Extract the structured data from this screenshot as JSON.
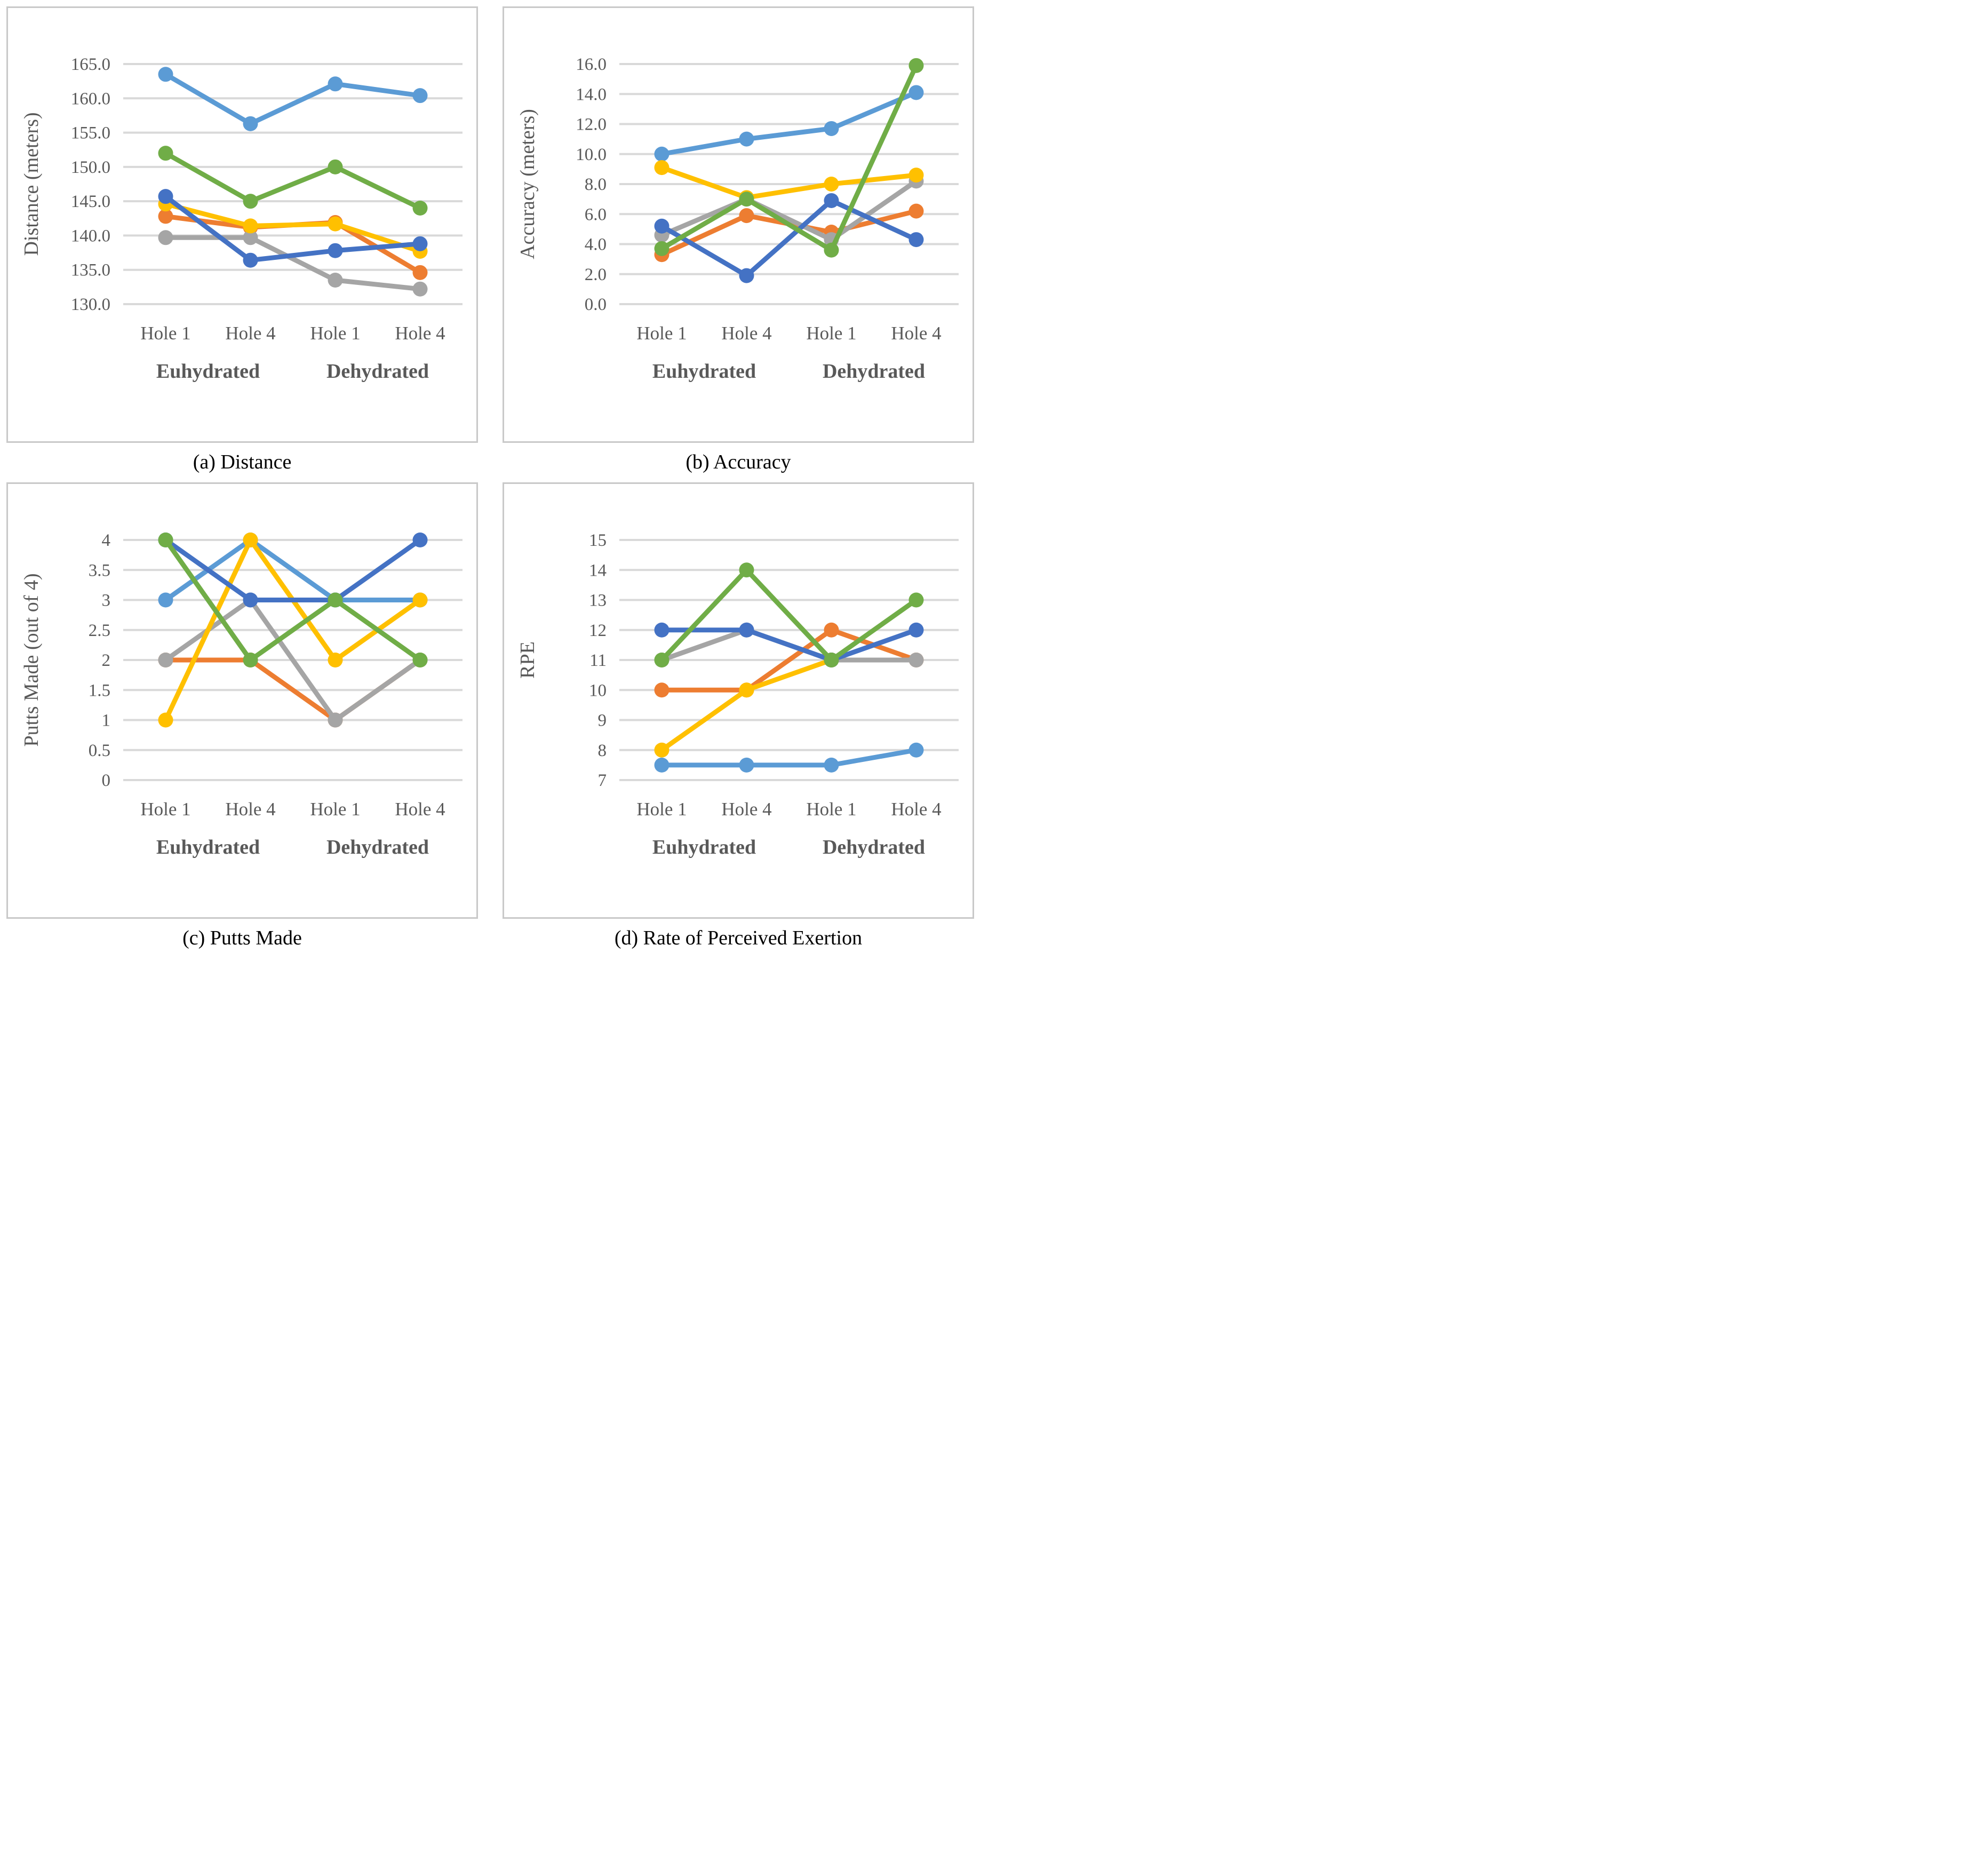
{
  "figure": {
    "text_color": "#595959",
    "grid_color": "#d9d9d9",
    "border_color": "#c9c9c9",
    "series_colors": {
      "orange": "#ED7D31",
      "gray": "#A5A5A5",
      "light_blue": "#5B9BD5",
      "yellow": "#FFC000",
      "dark_blue": "#4472C4",
      "green": "#70AD47"
    }
  },
  "chart_data": [
    {
      "id": "a",
      "type": "line",
      "caption": "(a) Distance",
      "ylabel": "Distance (meters)",
      "categories": [
        "Hole 1",
        "Hole 4",
        "Hole 1",
        "Hole 4"
      ],
      "group_labels": [
        "Euhydrated",
        "Dehydrated"
      ],
      "ylim": [
        130,
        165
      ],
      "grid": true,
      "legend_position": "none",
      "ytick_values": [
        165,
        160,
        155,
        150,
        145,
        140,
        135,
        130
      ],
      "ytick_labels": [
        "165.0",
        "160.0",
        "155.0",
        "150.0",
        "145.0",
        "140.0",
        "135.0",
        "130.0"
      ],
      "series": [
        {
          "name": "orange",
          "color": "#ED7D31",
          "values": [
            142.8,
            141.2,
            141.9,
            134.6
          ]
        },
        {
          "name": "gray",
          "color": "#A5A5A5",
          "values": [
            139.7,
            139.7,
            133.5,
            132.2
          ]
        },
        {
          "name": "light_blue",
          "color": "#5B9BD5",
          "values": [
            163.5,
            156.3,
            162.1,
            160.4
          ]
        },
        {
          "name": "yellow",
          "color": "#FFC000",
          "values": [
            144.6,
            141.4,
            141.7,
            137.7
          ]
        },
        {
          "name": "dark_blue",
          "color": "#4472C4",
          "values": [
            145.7,
            136.4,
            137.8,
            138.8
          ]
        },
        {
          "name": "green",
          "color": "#70AD47",
          "values": [
            152.0,
            145.0,
            150.0,
            144.0
          ]
        }
      ]
    },
    {
      "id": "b",
      "type": "line",
      "caption": "(b) Accuracy",
      "ylabel": "Accuracy (meters)",
      "categories": [
        "Hole 1",
        "Hole 4",
        "Hole 1",
        "Hole 4"
      ],
      "group_labels": [
        "Euhydrated",
        "Dehydrated"
      ],
      "ylim": [
        0,
        16
      ],
      "grid": true,
      "legend_position": "none",
      "ytick_values": [
        16,
        14,
        12,
        10,
        8,
        6,
        4,
        2,
        0
      ],
      "ytick_labels": [
        "16.0",
        "14.0",
        "12.0",
        "10.0",
        "8.0",
        "6.0",
        "4.0",
        "2.0",
        "0.0"
      ],
      "series": [
        {
          "name": "orange",
          "color": "#ED7D31",
          "values": [
            3.3,
            5.9,
            4.8,
            6.2
          ]
        },
        {
          "name": "gray",
          "color": "#A5A5A5",
          "values": [
            4.6,
            7.0,
            4.3,
            8.2
          ]
        },
        {
          "name": "light_blue",
          "color": "#5B9BD5",
          "values": [
            10.0,
            11.0,
            11.7,
            14.1
          ]
        },
        {
          "name": "yellow",
          "color": "#FFC000",
          "values": [
            9.1,
            7.1,
            8.0,
            8.6
          ]
        },
        {
          "name": "dark_blue",
          "color": "#4472C4",
          "values": [
            5.2,
            1.9,
            6.9,
            4.3
          ]
        },
        {
          "name": "green",
          "color": "#70AD47",
          "values": [
            3.7,
            7.0,
            3.6,
            15.9
          ]
        }
      ]
    },
    {
      "id": "c",
      "type": "line",
      "caption": "(c) Putts Made",
      "ylabel": "Putts Made (out of 4)",
      "categories": [
        "Hole 1",
        "Hole 4",
        "Hole 1",
        "Hole 4"
      ],
      "group_labels": [
        "Euhydrated",
        "Dehydrated"
      ],
      "ylim": [
        0,
        4
      ],
      "grid": true,
      "legend_position": "none",
      "ytick_values": [
        4,
        3.5,
        3,
        2.5,
        2,
        1.5,
        1,
        0.5,
        0
      ],
      "ytick_labels": [
        "4",
        "3.5",
        "3",
        "2.5",
        "2",
        "1.5",
        "1",
        "0.5",
        "0"
      ],
      "series": [
        {
          "name": "orange",
          "color": "#ED7D31",
          "values": [
            2,
            2,
            1,
            2
          ]
        },
        {
          "name": "gray",
          "color": "#A5A5A5",
          "values": [
            2,
            3,
            1,
            2
          ]
        },
        {
          "name": "light_blue",
          "color": "#5B9BD5",
          "values": [
            3,
            4,
            3,
            3
          ]
        },
        {
          "name": "yellow",
          "color": "#FFC000",
          "values": [
            1,
            4,
            2,
            3
          ]
        },
        {
          "name": "dark_blue",
          "color": "#4472C4",
          "values": [
            4,
            3,
            3,
            4
          ]
        },
        {
          "name": "green",
          "color": "#70AD47",
          "values": [
            4,
            2,
            3,
            2
          ]
        }
      ]
    },
    {
      "id": "d",
      "type": "line",
      "caption": "(d) Rate of Perceived Exertion",
      "ylabel": "RPE",
      "categories": [
        "Hole 1",
        "Hole 4",
        "Hole 1",
        "Hole 4"
      ],
      "group_labels": [
        "Euhydrated",
        "Dehydrated"
      ],
      "ylim": [
        7,
        15
      ],
      "grid": true,
      "legend_position": "none",
      "ytick_values": [
        15,
        14,
        13,
        12,
        11,
        10,
        9,
        8,
        7
      ],
      "ytick_labels": [
        "15",
        "14",
        "13",
        "12",
        "11",
        "10",
        "9",
        "8",
        "7"
      ],
      "series": [
        {
          "name": "orange",
          "color": "#ED7D31",
          "values": [
            10,
            10,
            12,
            11
          ]
        },
        {
          "name": "gray",
          "color": "#A5A5A5",
          "values": [
            11,
            12,
            11,
            11
          ]
        },
        {
          "name": "light_blue",
          "color": "#5B9BD5",
          "values": [
            7.5,
            7.5,
            7.5,
            8
          ]
        },
        {
          "name": "yellow",
          "color": "#FFC000",
          "values": [
            8,
            10,
            11,
            null
          ]
        },
        {
          "name": "dark_blue",
          "color": "#4472C4",
          "values": [
            12,
            12,
            11,
            12
          ]
        },
        {
          "name": "green",
          "color": "#70AD47",
          "values": [
            11,
            14,
            11,
            13
          ]
        }
      ]
    }
  ]
}
